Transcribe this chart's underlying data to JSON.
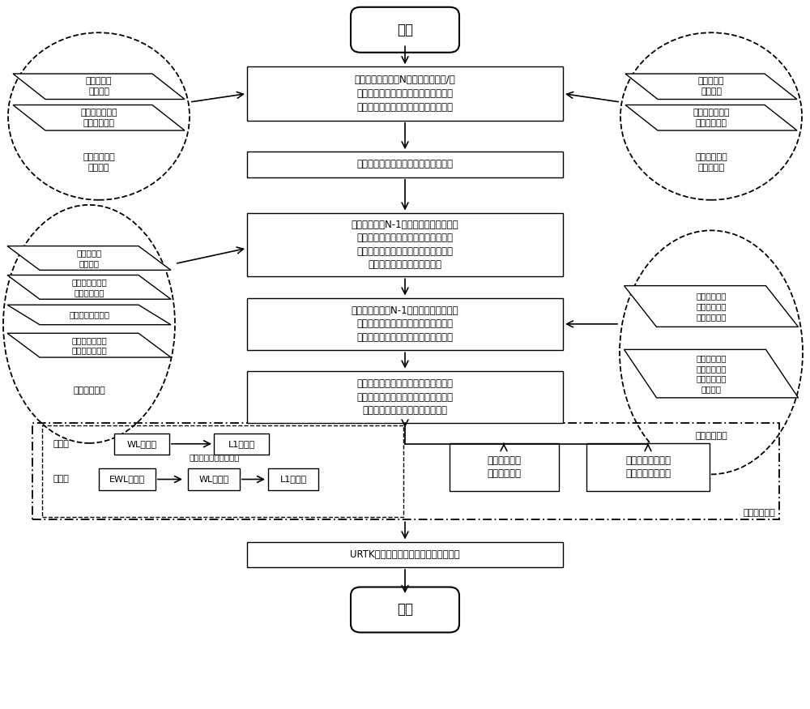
{
  "bg": "#ffffff",
  "lc": "#000000",
  "start": "开始",
  "end_t": "结束",
  "b1": "利用用户所在地区N个参考站前一天/当\n前时刻的区域增强信息对用户内插所得\n模型精化信息的残余误差进行预报建模",
  "b2": "通过伪距单点定位获得用户处近似坐标",
  "b3": "选择用户周边N-1个较近的参考站，利用\n所选参考站处播发的区域增强信息内插\n得到用户处误差改正量，并对用户的载\n波相位和伪距观测值进行精化",
  "b4": "根据用户与所选N-1个参考站的位置关系\n和当地时间动态设定用户观测值误差精\n化后残余大气误差的先验精度和稳定性",
  "b5": "用户在进行模糊度固定时，对测站天顶\n方向残余的对流层延迟以及测站在星方\n向残余的电离层延迟进行参数估计",
  "b6": "URTK模糊度固定解对应的精密定位结果",
  "lc1_label": "前一天的区域\n增强信息",
  "rc1_label": "当前时刻的区\n域增强信息",
  "lc2_label": "区域增强信息",
  "rc2_label": "大气约束信息",
  "lc1_p1": "天顶对流层\n延迟误差",
  "lc1_p2": "测站在星方向电\n离层延迟误差",
  "rc1_p1": "天顶对流层\n延迟误差",
  "rc1_p2": "测站在星方向电\n离层延迟误差",
  "lc2_p1": "天顶对流层\n延迟误差",
  "lc2_p2": "测站在星方向电\n离层延迟误差",
  "lc2_p3": "卖星硬件延迟误差",
  "lc2_p4": "消除对流层延迟\n影响的伪距误差",
  "rc2_p1": "天顶对流层延\n迟残余误差的\n大小和稳定性",
  "rc2_p2": "测站在星方向\n电离层延迟残\n余误差的大小\n和稳定性",
  "dual": "双频：",
  "triple": "三频：",
  "wl": "WL模糊度",
  "l1": "L1模糊度",
  "ewl": "EWL模糊度",
  "wl2": "WL模糊度",
  "l1b": "L1模糊度",
  "step": "波长从长到短逐步固定",
  "res1": "残余的天顶对\n流层延迟估値",
  "res2": "残余的测站在星方\n向电离层延迟估値",
  "param": "参数估计过程"
}
